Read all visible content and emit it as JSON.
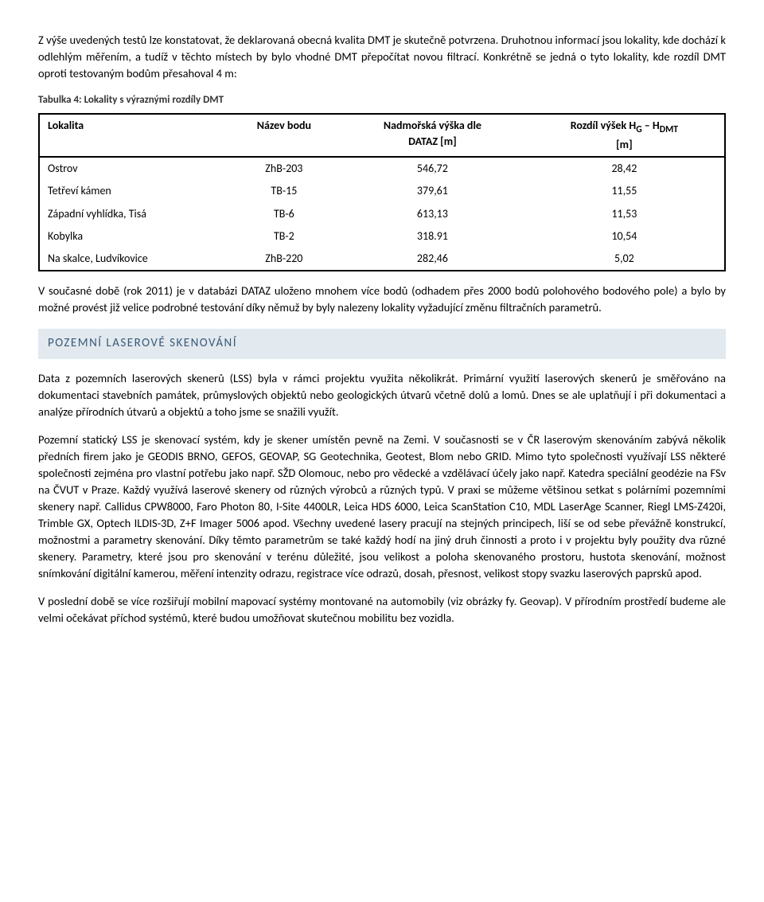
{
  "para1": "Z výše uvedených testů lze konstatovat, že deklarovaná obecná kvalita DMT je skutečně potvrzena. Druhotnou informací jsou lokality, kde dochází k odlehlým měřením, a tudíž v těchto místech by bylo vhodné DMT přepočítat novou filtrací. Konkrétně se jedná o tyto lokality, kde rozdíl DMT oproti testovaným bodům přesahoval 4 m:",
  "table_caption": "Tabulka 4: Lokality s výraznými rozdíly DMT",
  "table": {
    "headers": {
      "c1": "Lokalita",
      "c2": "Název bodu",
      "c3_l1": "Nadmořská výška dle",
      "c3_l2": "DATAZ [m]",
      "c4_l1": "Rozdíl výšek H",
      "c4_sub1": "G",
      "c4_mid": " – H",
      "c4_sub2": "DMT",
      "c4_l2": "[m]"
    },
    "rows": [
      [
        "Ostrov",
        "ZhB-203",
        "546,72",
        "28,42"
      ],
      [
        "Tetřeví kámen",
        "TB-15",
        "379,61",
        "11,55"
      ],
      [
        "Západní vyhlídka, Tisá",
        "TB-6",
        "613,13",
        "11,53"
      ],
      [
        "Kobylka",
        "TB-2",
        "318.91",
        "10,54"
      ],
      [
        "Na skalce, Ludvíkovice",
        "ZhB-220",
        "282,46",
        "5,02"
      ]
    ]
  },
  "para2": "V současné době (rok 2011) je v databázi DATAZ uloženo mnohem více bodů (odhadem přes 2000 bodů polohového bodového pole) a bylo by možné provést již velice podrobné testování díky němuž by byly nalezeny lokality vyžadující změnu filtračních parametrů.",
  "section_title": "POZEMNÍ LASEROVÉ SKENOVÁNÍ",
  "para3": "Data z pozemních laserových skenerů (LSS) byla v rámci projektu využita několikrát. Primární využití laserových skenerů je směřováno na dokumentaci stavebních památek, průmyslových objektů nebo geologických útvarů včetně dolů a lomů. Dnes se ale uplatňují i při dokumentaci a analýze přírodních útvarů a objektů a toho jsme se snažili využít.",
  "para4": "Pozemní statický LSS je skenovací systém, kdy je skener umístěn pevně na Zemi. V současnosti se v ČR laserovým skenováním zabývá několik předních firem jako je GEODIS BRNO, GEFOS,  GEOVAP, SG Geotechnika, Geotest, Blom nebo GRID.  Mimo tyto společnosti využívají LSS některé společnosti zejména pro vlastní potřebu jako např. SŽD Olomouc, nebo pro vědecké a vzdělávací účely jako např. Katedra speciální geodézie na FSv na ČVUT v Praze. Každý využívá laserové skenery od různých výrobců a různých typů. V praxi se můžeme většinou setkat s polárními pozemními skenery např. Callidus CPW8000, Faro Photon 80, I-Site 4400LR, Leica HDS 6000, Leica ScanStation C10, MDL LaserAge Scanner, Riegl LMS-Z420i, Trimble GX, Optech ILDIS-3D, Z+F Imager 5006 apod. Všechny uvedené lasery pracují na stejných principech, liší se od sebe převážně konstrukcí, možnostmi a parametry skenování. Díky těmto parametrům se také každý hodí na jiný druh činnosti a proto i v projektu byly použity dva různé skenery. Parametry, které jsou pro skenování v terénu důležité, jsou velikost a poloha skenovaného prostoru, hustota skenování, možnost snímkování digitální kamerou, měření intenzity odrazu, registrace více odrazů, dosah, přesnost, velikost stopy svazku laserových paprsků apod.",
  "para5": "V poslední době se více rozšiřují mobilní mapovací systémy montované na automobily (viz obrázky fy. Geovap). V přírodním prostředí budeme ale velmi očekávat příchod systémů, které budou umožňovat skutečnou mobilitu bez vozidla."
}
